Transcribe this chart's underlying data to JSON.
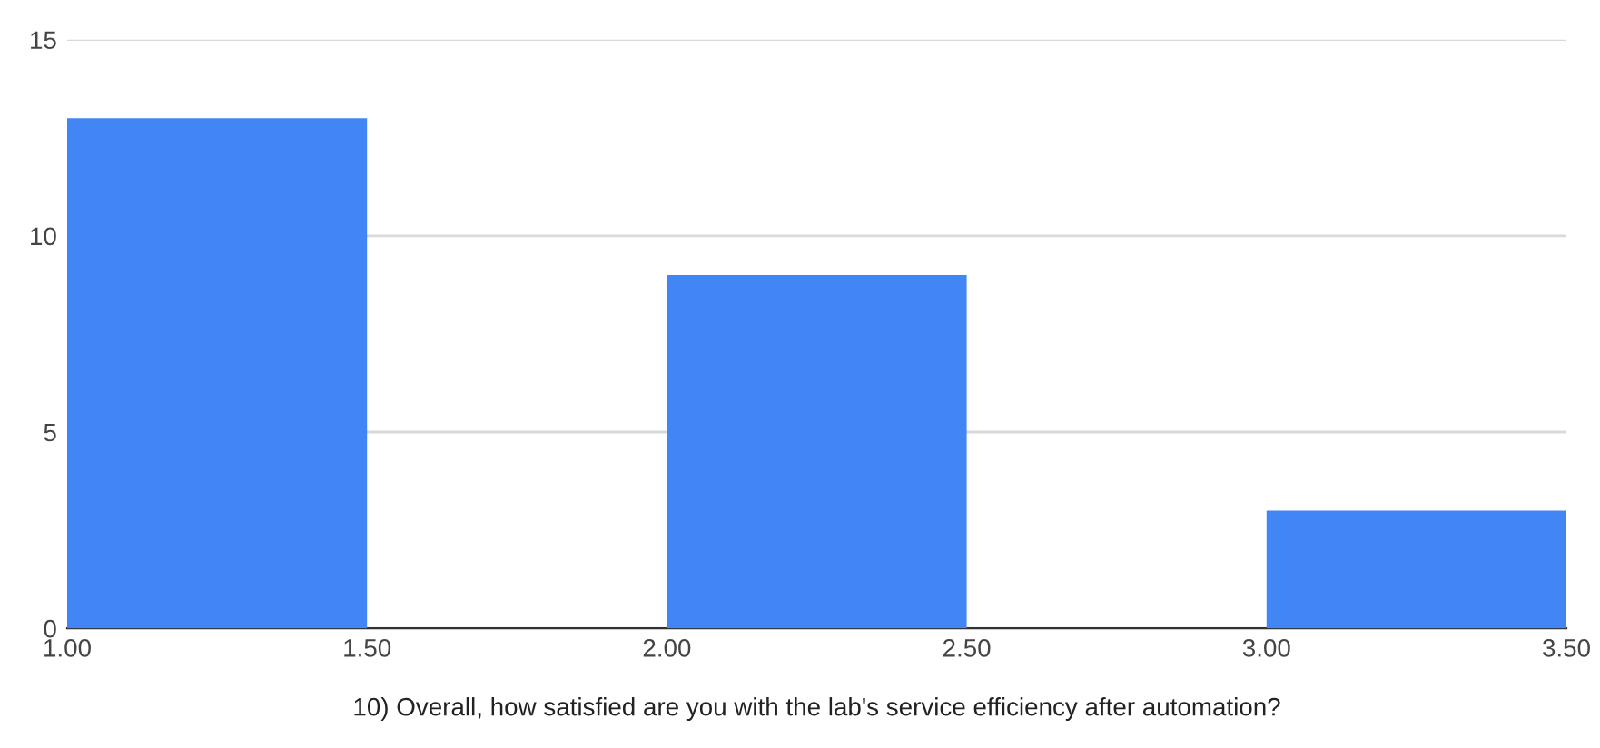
{
  "chart_data": {
    "type": "histogram",
    "xlabel": "10) Overall, how satisfied are you with the lab's service efficiency after automation?",
    "bins": [
      1.0,
      1.5,
      2.0,
      2.5,
      3.0,
      3.5
    ],
    "values": [
      13,
      0,
      9,
      0,
      3
    ],
    "color": "#4285f4",
    "xlim": [
      1.0,
      3.5
    ],
    "xticks": [
      {
        "value": 1.0,
        "label": "1.00"
      },
      {
        "value": 1.5,
        "label": "1.50"
      },
      {
        "value": 2.0,
        "label": "2.00"
      },
      {
        "value": 2.5,
        "label": "2.50"
      },
      {
        "value": 3.0,
        "label": "3.00"
      },
      {
        "value": 3.5,
        "label": "3.50"
      }
    ],
    "ylim": [
      0,
      15
    ],
    "yticks": [
      0,
      5,
      10,
      15
    ],
    "grid": "y",
    "legend": false
  }
}
